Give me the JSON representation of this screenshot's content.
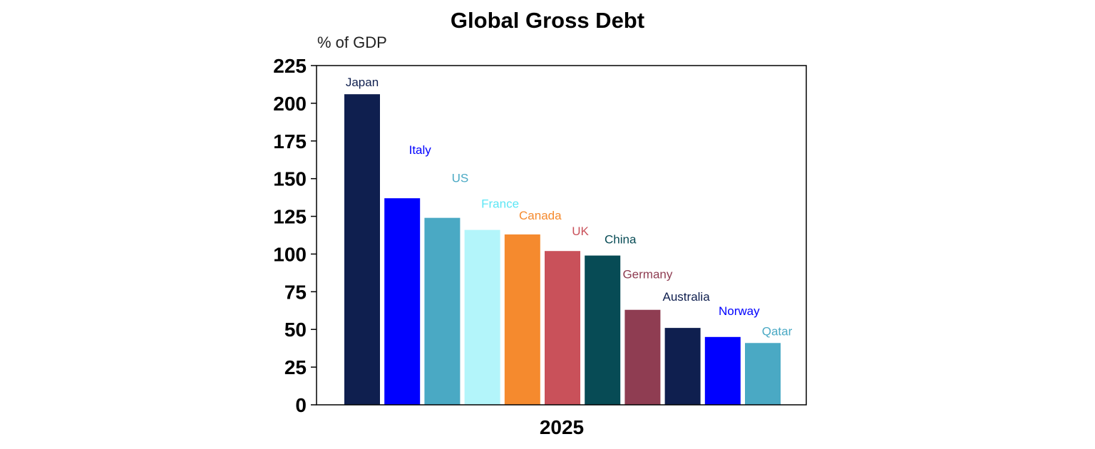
{
  "chart_data": {
    "type": "bar",
    "title": "Global Gross Debt",
    "ylabel": "% of GDP",
    "xlabel": "",
    "x_category": "2025",
    "ylim": [
      0,
      225
    ],
    "yticks": [
      0,
      25,
      50,
      75,
      100,
      125,
      150,
      175,
      200,
      225
    ],
    "grid": false,
    "legend": "none",
    "categories": [
      "Japan",
      "Italy",
      "US",
      "France",
      "Canada",
      "UK",
      "China",
      "Germany",
      "Australia",
      "Norway",
      "Qatar"
    ],
    "values": [
      206,
      137,
      124,
      116,
      113,
      102,
      99,
      63,
      51,
      45,
      41
    ],
    "bar_colors": [
      "#0f1f4f",
      "#0000ff",
      "#4aa9c4",
      "#b3f5fa",
      "#f58a2e",
      "#c9515a",
      "#074b55",
      "#8f3d52",
      "#0f1f4f",
      "#0000ff",
      "#4aa9c4"
    ],
    "label_colors": [
      "#0f1f4f",
      "#0000ff",
      "#4aa9c4",
      "#5ce6f5",
      "#f58a2e",
      "#c9515a",
      "#074b55",
      "#8f3d52",
      "#0f1f4f",
      "#0000ff",
      "#4aa9c4"
    ]
  }
}
